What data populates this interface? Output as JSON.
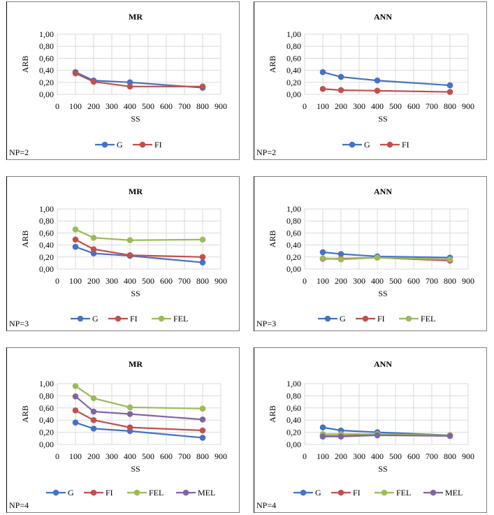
{
  "colors": {
    "G": "#4472C4",
    "FI": "#C0504D",
    "FEL": "#9BBB59",
    "MEL": "#8064A2",
    "grid": "#d9d9d9",
    "axis_text": "#404040"
  },
  "chart_data": [
    {
      "type": "line",
      "title": "MR",
      "xlabel": "SS",
      "ylabel": "ARB",
      "note": "NP=2",
      "x": [
        100,
        200,
        400,
        800
      ],
      "xlim": [
        0,
        900
      ],
      "ylim": [
        0,
        1
      ],
      "xticks": [
        "0",
        "100",
        "200",
        "300",
        "400",
        "500",
        "600",
        "700",
        "800",
        "900"
      ],
      "yticks": [
        "0,00",
        "0,20",
        "0,40",
        "0,60",
        "0,80",
        "1,00"
      ],
      "grid": true,
      "legend": "bottom",
      "series": [
        {
          "name": "G",
          "values": [
            0.37,
            0.23,
            0.2,
            0.11
          ]
        },
        {
          "name": "FI",
          "values": [
            0.35,
            0.21,
            0.13,
            0.13
          ]
        }
      ]
    },
    {
      "type": "line",
      "title": "ANN",
      "xlabel": "SS",
      "ylabel": "ARB",
      "note": "NP=2",
      "x": [
        100,
        200,
        400,
        800
      ],
      "xlim": [
        0,
        900
      ],
      "ylim": [
        0,
        1
      ],
      "xticks": [
        "0",
        "100",
        "200",
        "300",
        "400",
        "500",
        "600",
        "700",
        "800",
        "900"
      ],
      "yticks": [
        "0,00",
        "0,20",
        "0,40",
        "0,60",
        "0,80",
        "1,00"
      ],
      "grid": true,
      "legend": "bottom",
      "series": [
        {
          "name": "G",
          "values": [
            0.37,
            0.29,
            0.23,
            0.15
          ]
        },
        {
          "name": "FI",
          "values": [
            0.09,
            0.07,
            0.06,
            0.04
          ]
        }
      ]
    },
    {
      "type": "line",
      "title": "MR",
      "xlabel": "SS",
      "ylabel": "ARB",
      "note": "NP=3",
      "x": [
        100,
        200,
        400,
        800
      ],
      "xlim": [
        0,
        900
      ],
      "ylim": [
        0,
        1
      ],
      "xticks": [
        "0",
        "100",
        "200",
        "300",
        "400",
        "500",
        "600",
        "700",
        "800",
        "900"
      ],
      "yticks": [
        "0,00",
        "0,20",
        "0,40",
        "0,60",
        "0,80",
        "1,00"
      ],
      "grid": true,
      "legend": "bottom",
      "series": [
        {
          "name": "G",
          "values": [
            0.37,
            0.26,
            0.22,
            0.11
          ]
        },
        {
          "name": "FI",
          "values": [
            0.49,
            0.33,
            0.23,
            0.2
          ]
        },
        {
          "name": "FEL",
          "values": [
            0.66,
            0.52,
            0.48,
            0.49
          ]
        }
      ]
    },
    {
      "type": "line",
      "title": "ANN",
      "xlabel": "SS",
      "ylabel": "ARB",
      "note": "NP=3",
      "x": [
        100,
        200,
        400,
        800
      ],
      "xlim": [
        0,
        900
      ],
      "ylim": [
        0,
        1
      ],
      "xticks": [
        "0",
        "100",
        "200",
        "300",
        "400",
        "500",
        "600",
        "700",
        "800",
        "900"
      ],
      "yticks": [
        "0,00",
        "0,20",
        "0,40",
        "0,60",
        "0,80",
        "1,00"
      ],
      "grid": true,
      "legend": "bottom",
      "series": [
        {
          "name": "G",
          "values": [
            0.28,
            0.25,
            0.21,
            0.19
          ]
        },
        {
          "name": "FI",
          "values": [
            0.17,
            0.17,
            0.19,
            0.14
          ]
        },
        {
          "name": "FEL",
          "values": [
            0.18,
            0.16,
            0.19,
            0.16
          ]
        }
      ]
    },
    {
      "type": "line",
      "title": "MR",
      "xlabel": "SS",
      "ylabel": "ARB",
      "note": "NP=4",
      "x": [
        100,
        200,
        400,
        800
      ],
      "xlim": [
        0,
        900
      ],
      "ylim": [
        0,
        1
      ],
      "xticks": [
        "0",
        "100",
        "200",
        "300",
        "400",
        "500",
        "600",
        "700",
        "800",
        "900"
      ],
      "yticks": [
        "0,00",
        "0,20",
        "0,40",
        "0,60",
        "0,80",
        "1,00"
      ],
      "grid": true,
      "legend": "bottom",
      "series": [
        {
          "name": "G",
          "values": [
            0.36,
            0.26,
            0.22,
            0.11
          ]
        },
        {
          "name": "FI",
          "values": [
            0.56,
            0.4,
            0.28,
            0.23
          ]
        },
        {
          "name": "FEL",
          "values": [
            0.96,
            0.76,
            0.61,
            0.59
          ]
        },
        {
          "name": "MEL",
          "values": [
            0.79,
            0.54,
            0.5,
            0.41
          ]
        }
      ]
    },
    {
      "type": "line",
      "title": "ANN",
      "xlabel": "SS",
      "ylabel": "ARB",
      "note": "NP=4",
      "x": [
        100,
        200,
        400,
        800
      ],
      "xlim": [
        0,
        900
      ],
      "ylim": [
        0,
        1
      ],
      "xticks": [
        "0",
        "100",
        "200",
        "300",
        "400",
        "500",
        "600",
        "700",
        "800",
        "900"
      ],
      "yticks": [
        "0,00",
        "0,20",
        "0,40",
        "0,60",
        "0,80",
        "1,00"
      ],
      "grid": true,
      "legend": "bottom",
      "series": [
        {
          "name": "G",
          "values": [
            0.28,
            0.23,
            0.2,
            0.15
          ]
        },
        {
          "name": "FI",
          "values": [
            0.14,
            0.14,
            0.16,
            0.14
          ]
        },
        {
          "name": "FEL",
          "values": [
            0.17,
            0.17,
            0.17,
            0.15
          ]
        },
        {
          "name": "MEL",
          "values": [
            0.13,
            0.13,
            0.15,
            0.14
          ]
        }
      ]
    }
  ]
}
